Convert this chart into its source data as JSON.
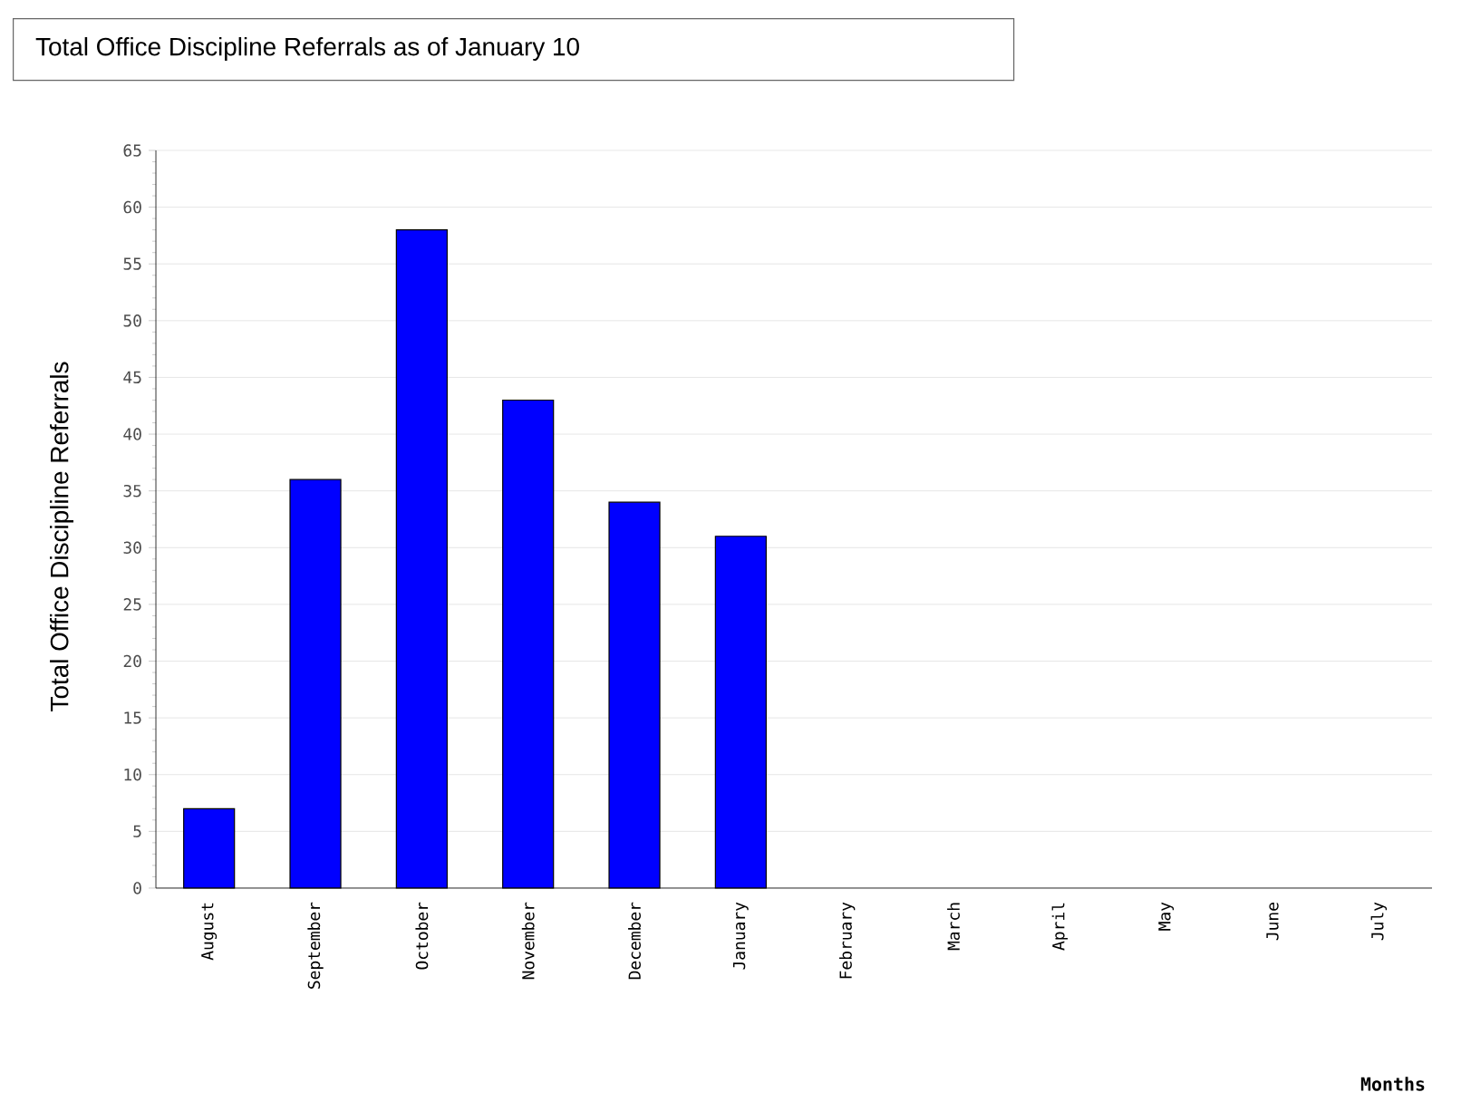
{
  "chart_data": {
    "type": "bar",
    "title": "Total Office Discipline Referrals as of January 10",
    "ylabel": "Total Office Discipline Referrals",
    "xlabel": "Months",
    "categories": [
      "August",
      "September",
      "October",
      "November",
      "December",
      "January",
      "February",
      "March",
      "April",
      "May",
      "June",
      "July"
    ],
    "values": [
      7,
      36,
      58,
      43,
      34,
      31,
      null,
      null,
      null,
      null,
      null,
      null
    ],
    "color": "#0000ff",
    "ylim": [
      0,
      65
    ],
    "yticks": [
      0,
      5,
      10,
      15,
      20,
      25,
      30,
      35,
      40,
      45,
      50,
      55,
      60,
      65
    ],
    "grid": "y"
  }
}
